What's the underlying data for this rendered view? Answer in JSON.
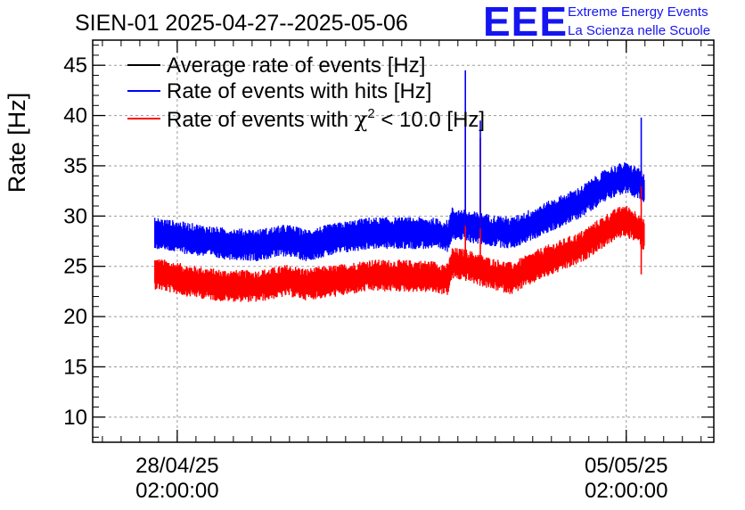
{
  "chart_data": {
    "type": "line",
    "title": "SIEN-01 2025-04-27--2025-05-06",
    "logo": {
      "mark": "EEE",
      "line1": "Extreme Energy Events",
      "line2": "La Scienza nelle Scuole"
    },
    "xlabel": "",
    "ylabel": "Rate [Hz]",
    "ylim": [
      7.5,
      47.5
    ],
    "xlim_days": [
      0,
      8.3
    ],
    "grid": true,
    "legend_position": "top-left",
    "yticks": [
      10,
      15,
      20,
      25,
      30,
      35,
      40,
      45
    ],
    "xticks": [
      {
        "day": 1.13,
        "line1": "28/04/25",
        "line2": "02:00:00"
      },
      {
        "day": 7.13,
        "line1": "05/05/25",
        "line2": "02:00:00"
      }
    ],
    "data_range_days": [
      0.83,
      7.37
    ],
    "series": [
      {
        "name": "Average rate of events [Hz]",
        "color": "#000000",
        "hidden_behind": "Rate of events with hits [Hz]"
      },
      {
        "name": "Rate of events with hits [Hz]",
        "color": "#0000ff",
        "noise_amplitude": 1.6,
        "points": [
          [
            0.83,
            28.3
          ],
          [
            1.25,
            27.8
          ],
          [
            1.7,
            27.3
          ],
          [
            2.2,
            27.1
          ],
          [
            2.6,
            27.6
          ],
          [
            2.85,
            27.1
          ],
          [
            3.3,
            27.8
          ],
          [
            3.7,
            28.3
          ],
          [
            4.5,
            28.3
          ],
          [
            4.75,
            28.0
          ],
          [
            4.8,
            29.3
          ],
          [
            5.0,
            29.0
          ],
          [
            5.3,
            28.6
          ],
          [
            5.6,
            28.3
          ],
          [
            6.0,
            29.6
          ],
          [
            6.5,
            31.3
          ],
          [
            6.9,
            33.3
          ],
          [
            7.1,
            33.8
          ],
          [
            7.3,
            33.3
          ],
          [
            7.37,
            32.5
          ]
        ],
        "spikes": [
          {
            "day": 4.98,
            "value": 44.5
          },
          {
            "day": 5.18,
            "value": 39.5
          },
          {
            "day": 7.33,
            "value": 39.8
          }
        ]
      },
      {
        "name": "Rate of events with χ² < 10.0 [Hz]",
        "name_prefix": "Rate of events with ",
        "chi_symbol": "χ",
        "superscript": "2",
        "name_suffix": " < 10.0 [Hz]",
        "color": "#ff0000",
        "noise_amplitude": 1.6,
        "points": [
          [
            0.83,
            24.3
          ],
          [
            1.25,
            23.6
          ],
          [
            1.7,
            23.1
          ],
          [
            2.2,
            23.0
          ],
          [
            2.6,
            23.6
          ],
          [
            2.85,
            23.2
          ],
          [
            3.3,
            23.6
          ],
          [
            3.7,
            24.1
          ],
          [
            4.5,
            24.0
          ],
          [
            4.75,
            23.7
          ],
          [
            4.8,
            25.3
          ],
          [
            5.0,
            25.1
          ],
          [
            5.3,
            24.3
          ],
          [
            5.6,
            23.8
          ],
          [
            6.0,
            25.3
          ],
          [
            6.5,
            26.8
          ],
          [
            6.9,
            28.8
          ],
          [
            7.1,
            29.6
          ],
          [
            7.3,
            28.8
          ],
          [
            7.37,
            28.0
          ]
        ],
        "spikes": [
          {
            "day": 4.98,
            "value": 39.5
          },
          {
            "day": 5.18,
            "value": 37.8
          },
          {
            "day": 7.33,
            "value": 34.5
          },
          {
            "day": 7.33,
            "value": 24.2
          }
        ]
      }
    ]
  }
}
